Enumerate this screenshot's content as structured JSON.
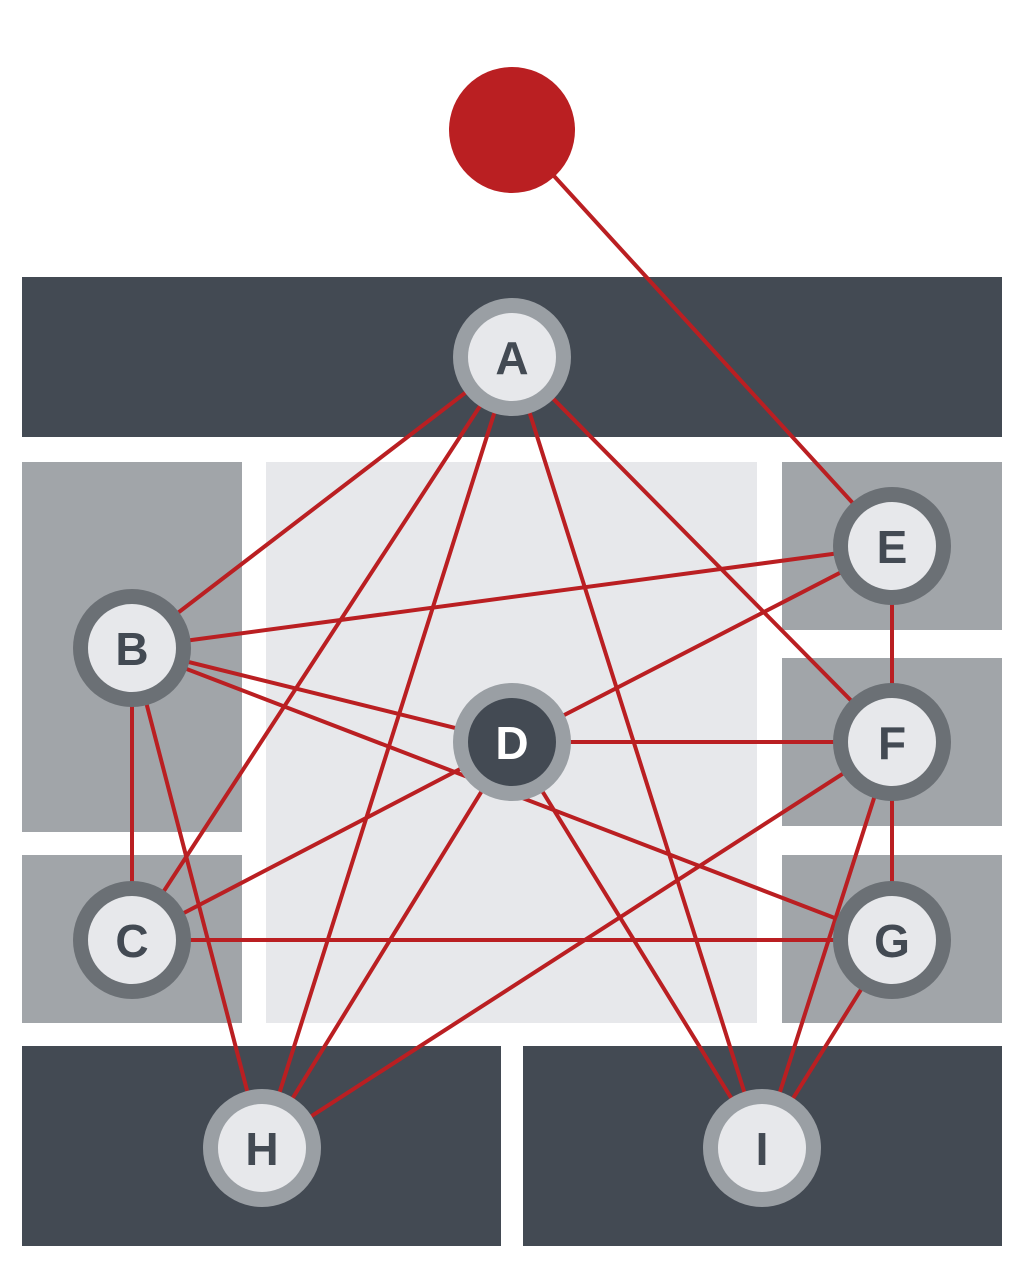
{
  "colors": {
    "background": "#ffffff",
    "dark_region": "#434a53",
    "mid_region": "#a1a5a9",
    "light_region": "#e7e8eb",
    "edge": "#ba1f22",
    "hub": "#ba1f22",
    "node_fill": "#e7e8eb",
    "node_ring_light": "#9a9fa4",
    "node_ring_dark": "#6b7075",
    "node_text": "#434a53",
    "node_d_fill": "#434a53",
    "node_d_ring": "#9a9fa4",
    "node_d_text": "#ffffff"
  },
  "regions": [
    {
      "id": "top-bar",
      "shade": "dark"
    },
    {
      "id": "left-upper",
      "shade": "mid"
    },
    {
      "id": "left-lower",
      "shade": "mid"
    },
    {
      "id": "center",
      "shade": "light"
    },
    {
      "id": "right-upper",
      "shade": "mid"
    },
    {
      "id": "right-middle",
      "shade": "mid"
    },
    {
      "id": "right-lower",
      "shade": "mid"
    },
    {
      "id": "bottom-left",
      "shade": "dark"
    },
    {
      "id": "bottom-right",
      "shade": "dark"
    }
  ],
  "hub": {
    "id": "hub"
  },
  "nodes": [
    {
      "id": "A",
      "label": "A",
      "style": "light-ring"
    },
    {
      "id": "B",
      "label": "B",
      "style": "dark-ring"
    },
    {
      "id": "C",
      "label": "C",
      "style": "dark-ring"
    },
    {
      "id": "D",
      "label": "D",
      "style": "filled"
    },
    {
      "id": "E",
      "label": "E",
      "style": "dark-ring"
    },
    {
      "id": "F",
      "label": "F",
      "style": "dark-ring"
    },
    {
      "id": "G",
      "label": "G",
      "style": "dark-ring"
    },
    {
      "id": "H",
      "label": "H",
      "style": "light-ring"
    },
    {
      "id": "I",
      "label": "I",
      "style": "light-ring"
    }
  ],
  "edges": [
    [
      "hub",
      "E"
    ],
    [
      "A",
      "B"
    ],
    [
      "A",
      "C"
    ],
    [
      "A",
      "H"
    ],
    [
      "A",
      "I"
    ],
    [
      "A",
      "F"
    ],
    [
      "B",
      "E"
    ],
    [
      "B",
      "D"
    ],
    [
      "B",
      "G"
    ],
    [
      "B",
      "C"
    ],
    [
      "B",
      "H"
    ],
    [
      "C",
      "D"
    ],
    [
      "C",
      "G"
    ],
    [
      "D",
      "E"
    ],
    [
      "D",
      "F"
    ],
    [
      "D",
      "H"
    ],
    [
      "D",
      "I"
    ],
    [
      "E",
      "F"
    ],
    [
      "F",
      "G"
    ],
    [
      "F",
      "H"
    ],
    [
      "F",
      "I"
    ],
    [
      "G",
      "I"
    ]
  ]
}
